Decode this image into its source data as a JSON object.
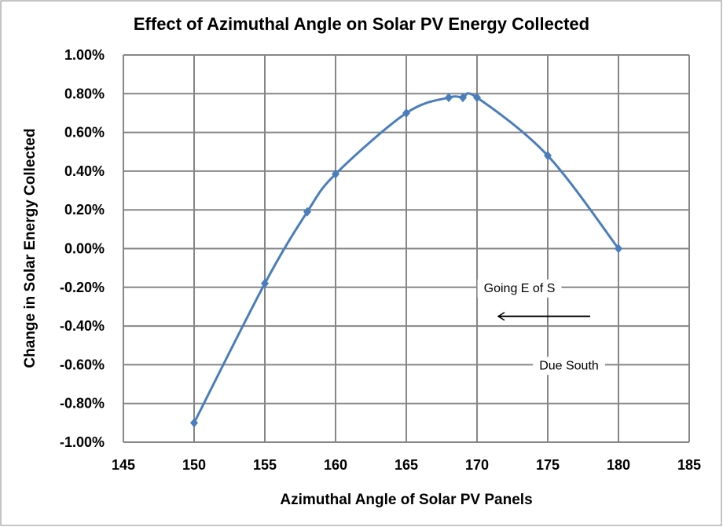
{
  "chart_data": {
    "type": "scatter",
    "title": "Effect of Azimuthal Angle on Solar PV Energy Collected",
    "xlabel": "Azimuthal Angle of Solar PV Panels",
    "ylabel": "Change in Solar Energy Collected",
    "xlim": [
      145,
      185
    ],
    "ylim": [
      -1.0,
      1.0
    ],
    "x_ticks": [
      "145",
      "150",
      "155",
      "160",
      "165",
      "170",
      "175",
      "180",
      "185"
    ],
    "y_ticks": [
      "1.00%",
      "0.80%",
      "0.60%",
      "0.40%",
      "0.20%",
      "0.00%",
      "-0.20%",
      "-0.40%",
      "-0.60%",
      "-0.80%",
      "-1.00%"
    ],
    "grid": true,
    "line_style": "smoothed line with diamond markers",
    "series": [
      {
        "x": [
          150,
          155,
          158,
          160,
          165,
          168,
          169,
          170,
          175,
          180
        ],
        "y": [
          -0.9,
          -0.18,
          0.19,
          0.385,
          0.7,
          0.78,
          0.78,
          0.78,
          0.48,
          0.0
        ],
        "color": "#4a7ebb"
      }
    ],
    "annotations": [
      {
        "text": "Going E of S",
        "x": 173,
        "y": -0.2
      },
      {
        "text": "Due South",
        "x": 176.5,
        "y": -0.6
      }
    ],
    "arrow": {
      "from": [
        178,
        -0.35
      ],
      "to": [
        171.5,
        -0.35
      ],
      "color": "#000000"
    }
  }
}
